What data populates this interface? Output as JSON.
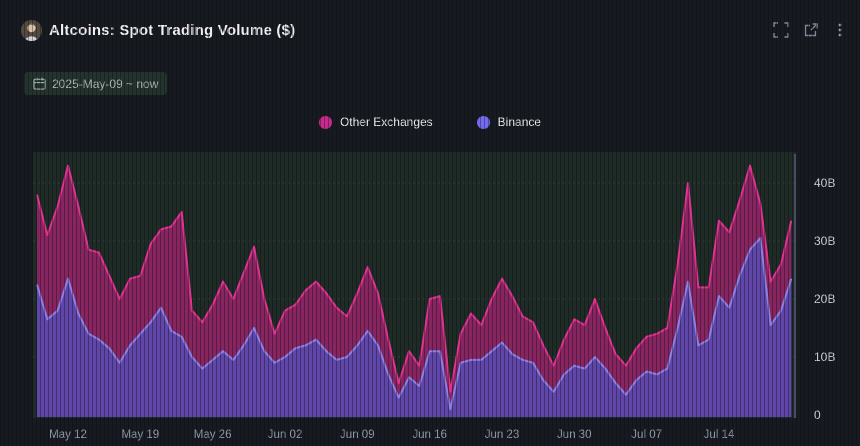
{
  "header": {
    "title": "Altcoins: Spot Trading Volume ($)",
    "icons": [
      {
        "name": "fullscreen-icon"
      },
      {
        "name": "external-link-icon"
      },
      {
        "name": "kebab-menu-icon"
      }
    ]
  },
  "toolbar": {
    "date_range": "2025-May-09 ~ now"
  },
  "legend": {
    "items": [
      {
        "label": "Other Exchanges",
        "color": "#c62b8c"
      },
      {
        "label": "Binance",
        "color": "#746bf1"
      }
    ]
  },
  "chart_data": {
    "type": "area",
    "stacked": true,
    "title": "Altcoins: Spot Trading Volume ($)",
    "unit": "billions USD per day",
    "grid": "horizontal-dotted",
    "legend_position": "top-center",
    "plot_bg": "#1e2b27",
    "ylim": [
      0,
      45.5
    ],
    "x": [
      "May 09",
      "May 10",
      "May 11",
      "May 12",
      "May 13",
      "May 14",
      "May 15",
      "May 16",
      "May 17",
      "May 18",
      "May 19",
      "May 20",
      "May 21",
      "May 22",
      "May 23",
      "May 24",
      "May 25",
      "May 26",
      "May 27",
      "May 28",
      "May 29",
      "May 30",
      "May 31",
      "Jun 01",
      "Jun 02",
      "Jun 03",
      "Jun 04",
      "Jun 05",
      "Jun 06",
      "Jun 07",
      "Jun 08",
      "Jun 09",
      "Jun 10",
      "Jun 11",
      "Jun 12",
      "Jun 13",
      "Jun 14",
      "Jun 15",
      "Jun 16",
      "Jun 17",
      "Jun 18",
      "Jun 19",
      "Jun 20",
      "Jun 21",
      "Jun 22",
      "Jun 23",
      "Jun 24",
      "Jun 25",
      "Jun 26",
      "Jun 27",
      "Jun 28",
      "Jun 29",
      "Jun 30",
      "Jul 01",
      "Jul 02",
      "Jul 03",
      "Jul 04",
      "Jul 05",
      "Jul 06",
      "Jul 07",
      "Jul 08",
      "Jul 09",
      "Jul 10",
      "Jul 11",
      "Jul 12",
      "Jul 13",
      "Jul 14",
      "Jul 15",
      "Jul 16",
      "Jul 17",
      "Jul 18",
      "Jul 19",
      "Jul 20",
      "Jul 21"
    ],
    "series": [
      {
        "name": "Binance",
        "fill": "#5f46a8",
        "line": "#8b80e8",
        "values": [
          22.5,
          16.5,
          18,
          23.5,
          17.5,
          14,
          13,
          11.5,
          9,
          12,
          14,
          16,
          18.5,
          14.5,
          13.5,
          10,
          8,
          9.5,
          11,
          9.5,
          12,
          15,
          11,
          9,
          10,
          11.5,
          12,
          13,
          11,
          9.5,
          10,
          12,
          14.5,
          12,
          7,
          3,
          6.5,
          5,
          11,
          11,
          1,
          9,
          9.5,
          9.5,
          11,
          12.5,
          10.5,
          9.5,
          9,
          6,
          4,
          7,
          8.5,
          8,
          10,
          8,
          5.5,
          3.5,
          6,
          7.5,
          7,
          8,
          15,
          23,
          12,
          13,
          20.5,
          18.5,
          24,
          28.5,
          30.5,
          15.5,
          18,
          23.5
        ]
      },
      {
        "name": "Other Exchanges",
        "fill": "#872560",
        "line": "#e0338f",
        "values": [
          15.5,
          14.5,
          18,
          19.5,
          18.5,
          14.5,
          15,
          12.5,
          11,
          11.5,
          10,
          13.5,
          13.5,
          18,
          21.5,
          8,
          8,
          9.5,
          12,
          10.5,
          12.5,
          14,
          9,
          5,
          8,
          7.5,
          9.5,
          10,
          10,
          9,
          7,
          9,
          11,
          9,
          6,
          2.5,
          4.5,
          3.5,
          9,
          9.5,
          3,
          5,
          8,
          6,
          9,
          11,
          10,
          7.5,
          7,
          6,
          4.5,
          6,
          8,
          7.5,
          10,
          7,
          5,
          5,
          5.5,
          6,
          7,
          7,
          11,
          17,
          10,
          9,
          13,
          13,
          13,
          14.5,
          6,
          7.5,
          8,
          10
        ]
      }
    ],
    "x_ticks": [
      {
        "label": "May 12",
        "index": 3
      },
      {
        "label": "May 19",
        "index": 10
      },
      {
        "label": "May 26",
        "index": 17
      },
      {
        "label": "Jun 02",
        "index": 24
      },
      {
        "label": "Jun 09",
        "index": 31
      },
      {
        "label": "Jun 16",
        "index": 38
      },
      {
        "label": "Jun 23",
        "index": 45
      },
      {
        "label": "Jun 30",
        "index": 52
      },
      {
        "label": "Jul 07",
        "index": 59
      },
      {
        "label": "Jul 14",
        "index": 66
      }
    ],
    "y_ticks": [
      {
        "label": "0",
        "value": 0
      },
      {
        "label": "10B",
        "value": 10
      },
      {
        "label": "20B",
        "value": 20
      },
      {
        "label": "30B",
        "value": 30
      },
      {
        "label": "40B",
        "value": 40
      }
    ]
  },
  "colors": {
    "page_bg": "#171b21",
    "plot_bg": "#1e2b27",
    "title_text": "#f0edf4",
    "axis_text": "#ccd2da",
    "x_axis_text": "#929da9",
    "chip_bg": "#25332e",
    "chip_text": "#a9b6b1"
  }
}
